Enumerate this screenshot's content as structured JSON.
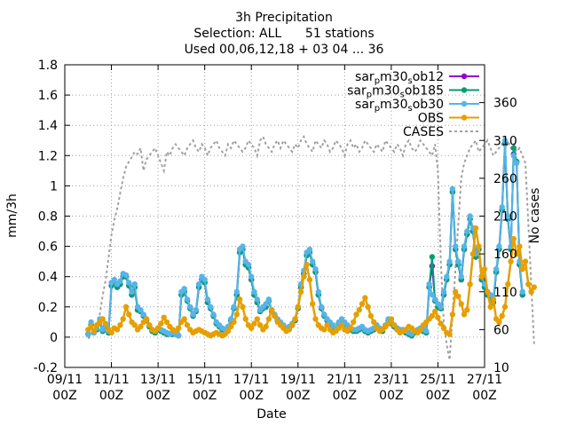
{
  "chart_data": {
    "type": "line",
    "title": [
      "3h Precipitation",
      "Selection: ALL      51 stations",
      "Used 00,06,12,18 + 03 04 ... 36"
    ],
    "xlabel": "Date",
    "ylabel": "mm/3h",
    "y2label": "No cases",
    "xlim": [
      "2011-11-09",
      "2011-11-27"
    ],
    "x_tick_labels": [
      "09/11",
      "11/11",
      "13/11",
      "15/11",
      "17/11",
      "19/11",
      "21/11",
      "23/11",
      "25/11",
      "27/11"
    ],
    "x_tick_sublabel": "00Z",
    "ylim": [
      -0.2,
      1.8
    ],
    "y_tick_labels": [
      "-0.2",
      "0",
      "0.2",
      "0.4",
      "0.6",
      "0.8",
      "1",
      "1.2",
      "1.4",
      "1.6",
      "1.8"
    ],
    "y2lim": [
      10,
      410
    ],
    "y2_tick_labels": [
      "10",
      "60",
      "110",
      "160",
      "210",
      "260",
      "310",
      "360"
    ],
    "grid": true,
    "legend_position": "top-right",
    "legend": [
      {
        "main": "sar",
        "sub1": "p",
        "mid": "m30",
        "sub2": "s",
        "end": "ob12",
        "color": "#9400d3",
        "marker": "circle",
        "dash": false
      },
      {
        "main": "sar",
        "sub1": "p",
        "mid": "m30",
        "sub2": "s",
        "end": "ob185",
        "color": "#009e73",
        "marker": "circle",
        "dash": false
      },
      {
        "main": "sar",
        "sub1": "p",
        "mid": "m30",
        "sub2": "s",
        "end": "ob30",
        "color": "#56b4e9",
        "marker": "circle",
        "dash": false
      },
      {
        "main": "OBS",
        "sub1": "",
        "mid": "",
        "sub2": "",
        "end": "",
        "color": "#e69f00",
        "marker": "circle",
        "dash": false
      },
      {
        "main": "CASES",
        "sub1": "",
        "mid": "",
        "sub2": "",
        "end": "",
        "color": "#a0a0a0",
        "marker": "none",
        "dash": true
      }
    ],
    "x_start": "2011-11-10",
    "step_hours": 3,
    "series": [
      {
        "name": "OBS",
        "color": "#e69f00",
        "values": [
          0.05,
          0.07,
          0.04,
          0.08,
          0.1,
          0.12,
          0.09,
          0.05,
          0.03,
          0.06,
          0.05,
          0.08,
          0.12,
          0.2,
          0.15,
          0.1,
          0.08,
          0.05,
          0.07,
          0.1,
          0.12,
          0.08,
          0.05,
          0.04,
          0.06,
          0.09,
          0.13,
          0.1,
          0.07,
          0.05,
          0.04,
          0.06,
          0.1,
          0.12,
          0.08,
          0.05,
          0.03,
          0.04,
          0.05,
          0.04,
          0.03,
          0.02,
          0.01,
          0.02,
          0.03,
          0.02,
          0.01,
          0.02,
          0.04,
          0.07,
          0.1,
          0.15,
          0.25,
          0.2,
          0.12,
          0.08,
          0.06,
          0.09,
          0.12,
          0.08,
          0.05,
          0.07,
          0.12,
          0.18,
          0.14,
          0.1,
          0.08,
          0.06,
          0.04,
          0.05,
          0.08,
          0.12,
          0.2,
          0.3,
          0.4,
          0.48,
          0.38,
          0.22,
          0.12,
          0.08,
          0.06,
          0.05,
          0.08,
          0.05,
          0.03,
          0.04,
          0.06,
          0.08,
          0.05,
          0.04,
          0.06,
          0.1,
          0.15,
          0.18,
          0.22,
          0.26,
          0.2,
          0.14,
          0.1,
          0.06,
          0.04,
          0.05,
          0.07,
          0.09,
          0.12,
          0.08,
          0.05,
          0.03,
          0.04,
          0.05,
          0.07,
          0.06,
          0.04,
          0.03,
          0.05,
          0.08,
          0.1,
          0.12,
          0.14,
          0.17,
          0.13,
          0.09,
          0.06,
          0.03,
          0.02,
          0.15,
          0.3,
          0.27,
          0.22,
          0.15,
          0.18,
          0.35,
          0.55,
          0.72,
          0.6,
          0.4,
          0.45,
          0.3,
          0.2,
          0.25,
          0.12,
          0.1,
          0.14,
          0.2,
          0.35,
          0.5,
          0.65,
          0.55,
          0.6,
          0.45,
          0.5,
          0.35,
          0.3,
          0.33
        ]
      },
      {
        "name": "sar_pm30_sob30",
        "color": "#56b4e9",
        "values": [
          0.02,
          0.1,
          0.03,
          0.06,
          0.12,
          0.05,
          0.08,
          0.04,
          0.36,
          0.38,
          0.35,
          0.37,
          0.42,
          0.41,
          0.36,
          0.3,
          0.35,
          0.2,
          0.18,
          0.15,
          0.12,
          0.08,
          0.05,
          0.04,
          0.06,
          0.05,
          0.04,
          0.03,
          0.02,
          0.03,
          0.02,
          0.01,
          0.3,
          0.32,
          0.25,
          0.2,
          0.15,
          0.18,
          0.35,
          0.4,
          0.38,
          0.25,
          0.2,
          0.15,
          0.1,
          0.08,
          0.06,
          0.05,
          0.07,
          0.12,
          0.2,
          0.3,
          0.58,
          0.6,
          0.5,
          0.48,
          0.4,
          0.3,
          0.25,
          0.18,
          0.2,
          0.22,
          0.25,
          0.18,
          0.15,
          0.12,
          0.1,
          0.08,
          0.06,
          0.07,
          0.09,
          0.12,
          0.2,
          0.35,
          0.44,
          0.56,
          0.58,
          0.5,
          0.45,
          0.3,
          0.2,
          0.15,
          0.12,
          0.1,
          0.08,
          0.06,
          0.1,
          0.12,
          0.1,
          0.08,
          0.06,
          0.05,
          0.05,
          0.06,
          0.07,
          0.05,
          0.04,
          0.05,
          0.06,
          0.08,
          0.06,
          0.05,
          0.08,
          0.12,
          0.1,
          0.08,
          0.06,
          0.05,
          0.05,
          0.04,
          0.03,
          0.02,
          0.04,
          0.05,
          0.06,
          0.05,
          0.04,
          0.35,
          0.28,
          0.25,
          0.22,
          0.2,
          0.3,
          0.4,
          0.5,
          0.98,
          0.6,
          0.5,
          0.4,
          0.6,
          0.7,
          0.8,
          0.72,
          0.55,
          0.6,
          0.4,
          0.35,
          0.3,
          0.28,
          0.25,
          0.45,
          0.6,
          0.86,
          1.3,
          0.8,
          0.6,
          1.2,
          1.15,
          0.5,
          0.3
        ]
      },
      {
        "name": "sar_pm30_sob185",
        "color": "#009e73",
        "values": [
          0.02,
          0.08,
          0.03,
          0.05,
          0.1,
          0.04,
          0.07,
          0.03,
          0.34,
          0.36,
          0.33,
          0.35,
          0.4,
          0.4,
          0.34,
          0.28,
          0.33,
          0.18,
          0.17,
          0.14,
          0.11,
          0.07,
          0.04,
          0.03,
          0.05,
          0.04,
          0.03,
          0.02,
          0.02,
          0.02,
          0.02,
          0.01,
          0.28,
          0.3,
          0.24,
          0.19,
          0.14,
          0.17,
          0.33,
          0.38,
          0.36,
          0.23,
          0.19,
          0.14,
          0.09,
          0.07,
          0.05,
          0.04,
          0.06,
          0.11,
          0.19,
          0.28,
          0.56,
          0.58,
          0.48,
          0.46,
          0.38,
          0.28,
          0.23,
          0.17,
          0.19,
          0.2,
          0.24,
          0.17,
          0.14,
          0.11,
          0.09,
          0.07,
          0.05,
          0.06,
          0.08,
          0.11,
          0.19,
          0.33,
          0.42,
          0.54,
          0.56,
          0.48,
          0.43,
          0.28,
          0.19,
          0.14,
          0.11,
          0.09,
          0.07,
          0.05,
          0.09,
          0.11,
          0.09,
          0.07,
          0.05,
          0.04,
          0.04,
          0.05,
          0.06,
          0.04,
          0.03,
          0.04,
          0.05,
          0.07,
          0.05,
          0.04,
          0.07,
          0.11,
          0.09,
          0.07,
          0.05,
          0.04,
          0.04,
          0.03,
          0.02,
          0.01,
          0.03,
          0.04,
          0.05,
          0.04,
          0.03,
          0.33,
          0.53,
          0.24,
          0.2,
          0.19,
          0.28,
          0.38,
          0.48,
          0.96,
          0.58,
          0.48,
          0.38,
          0.58,
          0.68,
          0.78,
          0.7,
          0.53,
          0.58,
          0.38,
          0.33,
          0.28,
          0.26,
          0.23,
          0.43,
          0.58,
          0.84,
          1.28,
          0.78,
          0.58,
          1.25,
          1.16,
          0.48,
          0.28
        ]
      },
      {
        "name": "sar_pm30_sob12",
        "color": "#9400d3",
        "values": [
          0.02,
          0.08,
          0.03,
          0.05,
          0.1,
          0.04,
          0.07,
          0.03,
          0.34,
          0.36,
          0.33,
          0.35,
          0.4,
          0.4,
          0.34,
          0.28,
          0.33,
          0.18,
          0.17,
          0.14,
          0.11,
          0.07,
          0.04,
          0.03,
          0.05,
          0.04,
          0.03,
          0.02,
          0.02,
          0.02,
          0.02,
          0.01,
          0.28,
          0.3,
          0.24,
          0.19,
          0.14,
          0.17,
          0.33,
          0.38,
          0.36,
          0.23,
          0.19,
          0.14,
          0.09,
          0.07,
          0.05,
          0.04,
          0.06,
          0.11,
          0.19,
          0.28,
          0.56,
          0.58,
          0.48,
          0.46,
          0.38,
          0.28,
          0.23,
          0.17,
          0.19,
          0.2,
          0.24,
          0.17,
          0.14,
          0.11,
          0.09,
          0.07,
          0.05,
          0.06,
          0.08,
          0.11,
          0.19,
          0.33,
          0.42,
          0.54,
          0.56,
          0.48,
          0.43,
          0.28,
          0.19,
          0.14,
          0.11,
          0.09,
          0.07,
          0.05,
          0.09,
          0.11,
          0.09,
          0.07,
          0.05,
          0.04,
          0.04,
          0.05,
          0.06,
          0.04,
          0.03,
          0.04,
          0.05,
          0.07,
          0.05,
          0.04,
          0.07,
          0.11,
          0.09,
          0.07,
          0.05,
          0.04,
          0.04,
          0.03,
          0.02,
          0.01,
          0.03,
          0.04,
          0.05,
          0.04,
          0.03,
          0.33,
          0.47,
          0.24,
          0.2,
          0.19,
          0.28,
          0.38,
          0.48,
          0.96,
          0.58,
          0.48,
          0.38,
          0.58,
          0.68,
          0.78,
          0.7,
          0.53,
          0.58,
          0.38,
          0.33,
          0.28,
          0.26,
          0.23,
          0.43,
          0.58,
          0.84,
          1.28,
          0.78,
          0.58,
          1.21,
          1.16,
          0.48,
          0.28
        ]
      }
    ],
    "cases": {
      "name": "CASES",
      "color": "#a0a0a0",
      "values": [
        48,
        52,
        58,
        65,
        80,
        105,
        125,
        155,
        185,
        205,
        220,
        240,
        260,
        275,
        282,
        288,
        295,
        292,
        300,
        270,
        285,
        290,
        295,
        300,
        290,
        280,
        270,
        295,
        290,
        300,
        305,
        300,
        295,
        290,
        300,
        305,
        310,
        300,
        295,
        305,
        300,
        290,
        300,
        305,
        310,
        300,
        295,
        290,
        305,
        300,
        310,
        305,
        300,
        295,
        300,
        310,
        305,
        300,
        290,
        310,
        315,
        305,
        300,
        295,
        305,
        310,
        300,
        310,
        305,
        300,
        295,
        305,
        300,
        310,
        315,
        305,
        300,
        295,
        310,
        305,
        300,
        310,
        305,
        295,
        300,
        310,
        305,
        300,
        290,
        305,
        310,
        300,
        305,
        295,
        300,
        310,
        305,
        300,
        295,
        305,
        300,
        295,
        310,
        305,
        300,
        295,
        305,
        300,
        290,
        305,
        310,
        300,
        295,
        300,
        310,
        305,
        300,
        295,
        290,
        305,
        270,
        150,
        70,
        40,
        20,
        80,
        140,
        200,
        260,
        280,
        290,
        300,
        305,
        310,
        295,
        300,
        305,
        310,
        300,
        290,
        295,
        300,
        305,
        300,
        310,
        300,
        305,
        295,
        300,
        290,
        280,
        200,
        120,
        40
      ]
    }
  }
}
